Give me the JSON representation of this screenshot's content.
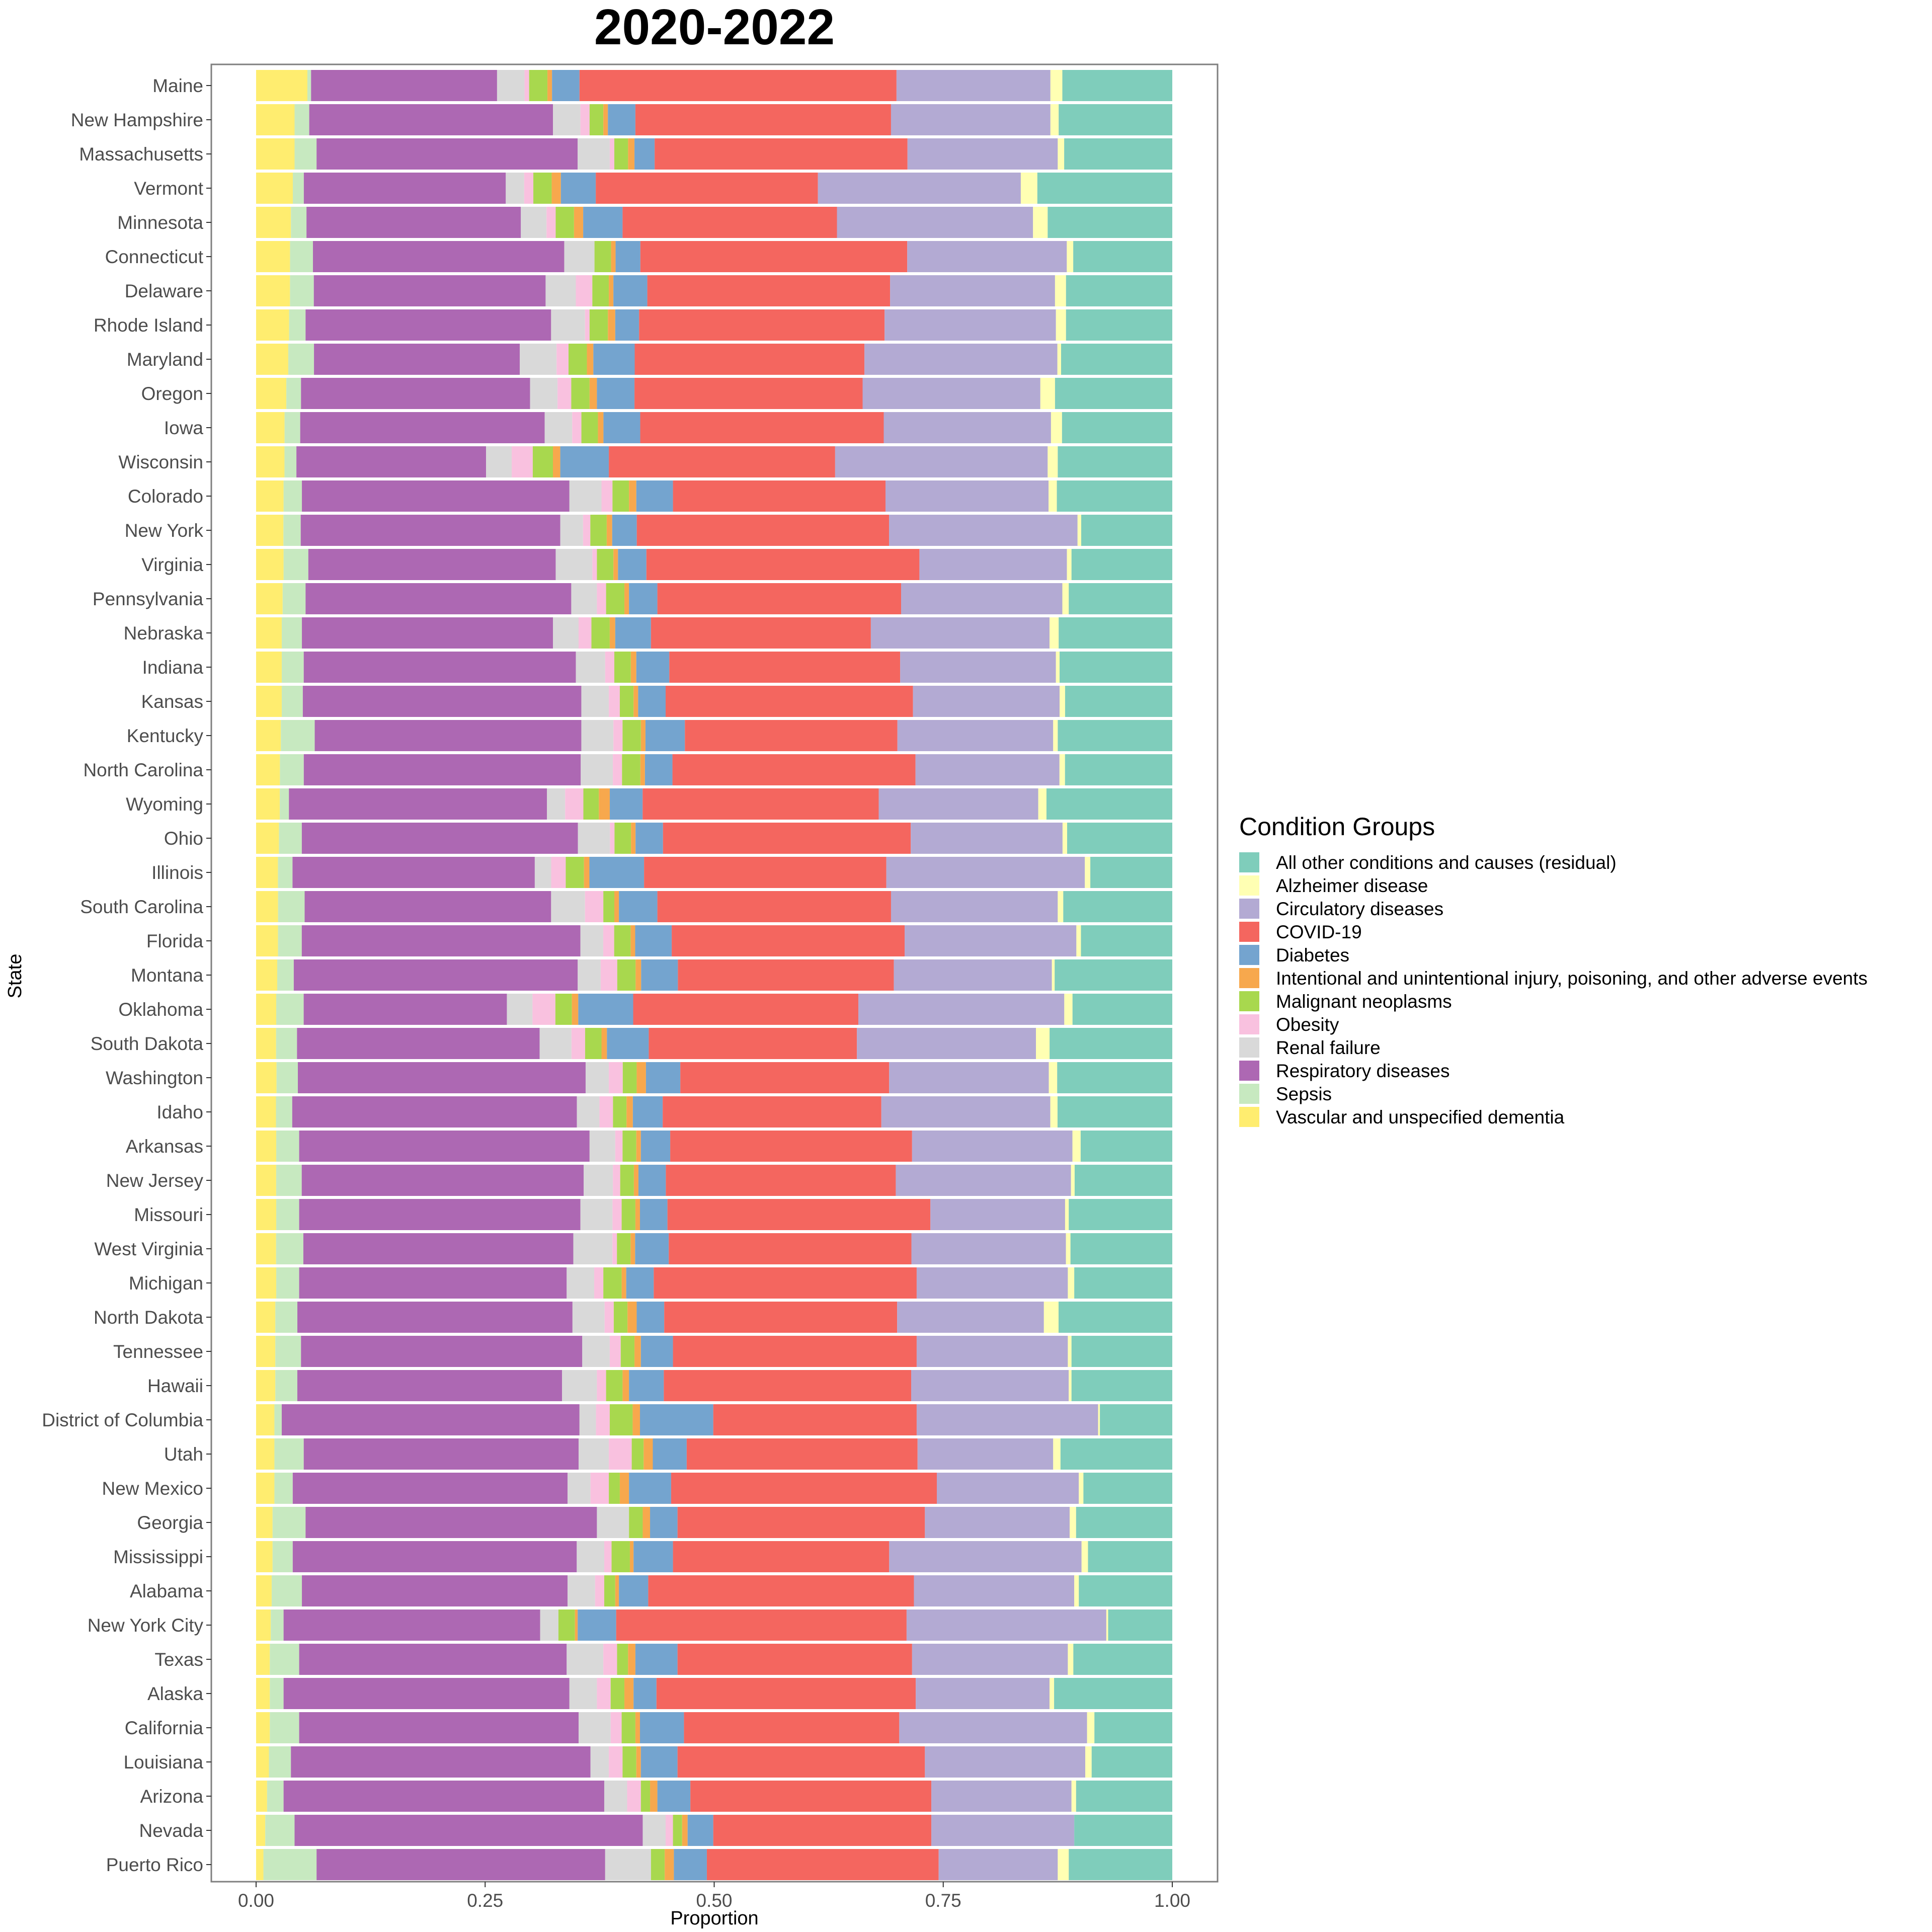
{
  "chart_data": {
    "type": "bar",
    "orientation": "horizontal",
    "stacked": true,
    "title": "2020-2022",
    "xlabel": "Proportion",
    "ylabel": "State",
    "xlim": [
      0,
      1
    ],
    "xticks": [
      "0.00",
      "0.25",
      "0.50",
      "0.75",
      "1.00"
    ],
    "xtick_values": [
      0,
      0.25,
      0.5,
      0.75,
      1
    ],
    "grid": false,
    "legend_position": "right",
    "legend_title": "Condition Groups",
    "legend": [
      {
        "name": "All other conditions and causes (residual)",
        "color": "#7fcdbb"
      },
      {
        "name": "Alzheimer disease",
        "color": "#ffffb3"
      },
      {
        "name": "Circulatory diseases",
        "color": "#b3aad3"
      },
      {
        "name": "COVID-19",
        "color": "#f4665f"
      },
      {
        "name": "Diabetes",
        "color": "#74a4cf"
      },
      {
        "name": "Intentional and unintentional injury, poisoning, and other adverse events",
        "color": "#f7a84d"
      },
      {
        "name": "Malignant neoplasms",
        "color": "#a8d84e"
      },
      {
        "name": "Obesity",
        "color": "#f9c1df"
      },
      {
        "name": "Renal failure",
        "color": "#d9d9d9"
      },
      {
        "name": "Respiratory diseases",
        "color": "#ad68b3"
      },
      {
        "name": "Sepsis",
        "color": "#c7e9c0"
      },
      {
        "name": "Vascular and unspecified dementia",
        "color": "#ffed6f"
      }
    ],
    "stack_order_left_to_right": [
      "Vascular and unspecified dementia",
      "Sepsis",
      "Respiratory diseases",
      "Renal failure",
      "Obesity",
      "Malignant neoplasms",
      "Intentional and unintentional injury, poisoning, and other adverse events",
      "Diabetes",
      "COVID-19",
      "Circulatory diseases",
      "Alzheimer disease",
      "All other conditions and causes (residual)"
    ],
    "categories": [
      "Maine",
      "New Hampshire",
      "Massachusetts",
      "Vermont",
      "Minnesota",
      "Connecticut",
      "Delaware",
      "Rhode Island",
      "Maryland",
      "Oregon",
      "Iowa",
      "Wisconsin",
      "Colorado",
      "New York",
      "Virginia",
      "Pennsylvania",
      "Nebraska",
      "Indiana",
      "Kansas",
      "Kentucky",
      "North Carolina",
      "Wyoming",
      "Ohio",
      "Illinois",
      "South Carolina",
      "Florida",
      "Montana",
      "Oklahoma",
      "South Dakota",
      "Washington",
      "Idaho",
      "Arkansas",
      "New Jersey",
      "Missouri",
      "West Virginia",
      "Michigan",
      "North Dakota",
      "Tennessee",
      "Hawaii",
      "District of Columbia",
      "Utah",
      "New Mexico",
      "Georgia",
      "Mississippi",
      "Alabama",
      "New York City",
      "Texas",
      "Alaska",
      "California",
      "Louisiana",
      "Arizona",
      "Nevada",
      "Puerto Rico"
    ],
    "rows": [
      [
        0.056,
        0.004,
        0.203,
        0.03,
        0.005,
        0.02,
        0.005,
        0.03,
        0.346,
        0.168,
        0.013,
        0.12
      ],
      [
        0.042,
        0.016,
        0.266,
        0.03,
        0.01,
        0.015,
        0.005,
        0.03,
        0.279,
        0.174,
        0.009,
        0.124
      ],
      [
        0.042,
        0.024,
        0.285,
        0.035,
        0.005,
        0.015,
        0.007,
        0.022,
        0.276,
        0.164,
        0.007,
        0.118
      ],
      [
        0.04,
        0.012,
        0.22,
        0.02,
        0.01,
        0.02,
        0.01,
        0.038,
        0.242,
        0.221,
        0.018,
        0.147
      ],
      [
        0.038,
        0.017,
        0.234,
        0.028,
        0.01,
        0.02,
        0.01,
        0.043,
        0.234,
        0.214,
        0.016,
        0.136
      ],
      [
        0.037,
        0.025,
        0.274,
        0.033,
        0.0,
        0.018,
        0.005,
        0.027,
        0.291,
        0.174,
        0.007,
        0.108
      ],
      [
        0.037,
        0.026,
        0.253,
        0.033,
        0.018,
        0.018,
        0.005,
        0.037,
        0.265,
        0.18,
        0.012,
        0.116
      ],
      [
        0.036,
        0.018,
        0.268,
        0.037,
        0.005,
        0.02,
        0.008,
        0.026,
        0.268,
        0.187,
        0.011,
        0.116
      ],
      [
        0.035,
        0.028,
        0.224,
        0.04,
        0.013,
        0.02,
        0.007,
        0.045,
        0.25,
        0.21,
        0.004,
        0.121
      ],
      [
        0.033,
        0.016,
        0.25,
        0.03,
        0.015,
        0.02,
        0.008,
        0.041,
        0.249,
        0.194,
        0.016,
        0.128
      ],
      [
        0.031,
        0.017,
        0.266,
        0.03,
        0.01,
        0.018,
        0.006,
        0.04,
        0.265,
        0.182,
        0.012,
        0.12
      ],
      [
        0.031,
        0.013,
        0.207,
        0.028,
        0.023,
        0.022,
        0.008,
        0.053,
        0.247,
        0.232,
        0.011,
        0.125
      ],
      [
        0.03,
        0.02,
        0.292,
        0.035,
        0.012,
        0.018,
        0.008,
        0.04,
        0.232,
        0.178,
        0.009,
        0.126
      ],
      [
        0.03,
        0.019,
        0.285,
        0.025,
        0.008,
        0.018,
        0.006,
        0.027,
        0.277,
        0.207,
        0.004,
        0.1
      ],
      [
        0.03,
        0.027,
        0.27,
        0.04,
        0.005,
        0.018,
        0.005,
        0.031,
        0.298,
        0.161,
        0.005,
        0.11
      ],
      [
        0.029,
        0.025,
        0.29,
        0.028,
        0.01,
        0.02,
        0.005,
        0.031,
        0.266,
        0.176,
        0.007,
        0.113
      ],
      [
        0.028,
        0.022,
        0.274,
        0.028,
        0.014,
        0.02,
        0.006,
        0.039,
        0.24,
        0.195,
        0.01,
        0.124
      ],
      [
        0.028,
        0.024,
        0.297,
        0.032,
        0.01,
        0.018,
        0.006,
        0.036,
        0.252,
        0.17,
        0.004,
        0.123
      ],
      [
        0.028,
        0.023,
        0.304,
        0.03,
        0.012,
        0.015,
        0.005,
        0.03,
        0.27,
        0.16,
        0.006,
        0.117
      ],
      [
        0.027,
        0.037,
        0.291,
        0.035,
        0.01,
        0.02,
        0.005,
        0.043,
        0.232,
        0.17,
        0.005,
        0.125
      ],
      [
        0.026,
        0.026,
        0.302,
        0.035,
        0.01,
        0.02,
        0.005,
        0.03,
        0.265,
        0.157,
        0.006,
        0.117
      ],
      [
        0.026,
        0.01,
        0.283,
        0.02,
        0.02,
        0.017,
        0.012,
        0.036,
        0.259,
        0.175,
        0.009,
        0.138
      ],
      [
        0.025,
        0.025,
        0.302,
        0.035,
        0.005,
        0.018,
        0.005,
        0.03,
        0.271,
        0.166,
        0.005,
        0.115
      ],
      [
        0.024,
        0.016,
        0.266,
        0.018,
        0.016,
        0.02,
        0.006,
        0.06,
        0.266,
        0.218,
        0.006,
        0.09
      ],
      [
        0.024,
        0.029,
        0.269,
        0.037,
        0.02,
        0.012,
        0.005,
        0.042,
        0.255,
        0.182,
        0.006,
        0.119
      ],
      [
        0.024,
        0.026,
        0.305,
        0.025,
        0.012,
        0.018,
        0.005,
        0.04,
        0.255,
        0.188,
        0.005,
        0.1
      ],
      [
        0.023,
        0.018,
        0.309,
        0.025,
        0.018,
        0.02,
        0.006,
        0.04,
        0.235,
        0.172,
        0.003,
        0.128
      ],
      [
        0.022,
        0.03,
        0.222,
        0.028,
        0.025,
        0.018,
        0.007,
        0.06,
        0.246,
        0.225,
        0.009,
        0.109
      ],
      [
        0.022,
        0.023,
        0.267,
        0.035,
        0.015,
        0.018,
        0.006,
        0.046,
        0.229,
        0.197,
        0.015,
        0.135
      ],
      [
        0.022,
        0.023,
        0.31,
        0.025,
        0.015,
        0.015,
        0.01,
        0.037,
        0.225,
        0.172,
        0.009,
        0.124
      ],
      [
        0.022,
        0.018,
        0.315,
        0.025,
        0.015,
        0.015,
        0.007,
        0.033,
        0.242,
        0.187,
        0.008,
        0.127
      ],
      [
        0.022,
        0.025,
        0.317,
        0.028,
        0.008,
        0.015,
        0.005,
        0.032,
        0.264,
        0.175,
        0.009,
        0.1
      ],
      [
        0.022,
        0.028,
        0.309,
        0.032,
        0.008,
        0.015,
        0.005,
        0.03,
        0.252,
        0.192,
        0.004,
        0.107
      ],
      [
        0.022,
        0.025,
        0.307,
        0.035,
        0.01,
        0.015,
        0.005,
        0.03,
        0.287,
        0.147,
        0.004,
        0.113
      ],
      [
        0.022,
        0.03,
        0.297,
        0.043,
        0.005,
        0.015,
        0.005,
        0.037,
        0.267,
        0.17,
        0.005,
        0.112
      ],
      [
        0.022,
        0.025,
        0.292,
        0.03,
        0.01,
        0.02,
        0.005,
        0.03,
        0.287,
        0.165,
        0.007,
        0.107
      ],
      [
        0.021,
        0.024,
        0.3,
        0.035,
        0.01,
        0.015,
        0.01,
        0.03,
        0.254,
        0.16,
        0.016,
        0.124
      ],
      [
        0.021,
        0.028,
        0.307,
        0.03,
        0.012,
        0.015,
        0.007,
        0.035,
        0.266,
        0.165,
        0.004,
        0.11
      ],
      [
        0.021,
        0.024,
        0.289,
        0.038,
        0.01,
        0.018,
        0.007,
        0.038,
        0.27,
        0.172,
        0.003,
        0.11
      ],
      [
        0.02,
        0.008,
        0.325,
        0.018,
        0.015,
        0.025,
        0.008,
        0.08,
        0.222,
        0.198,
        0.002,
        0.079
      ],
      [
        0.02,
        0.032,
        0.3,
        0.033,
        0.025,
        0.013,
        0.01,
        0.037,
        0.252,
        0.148,
        0.008,
        0.122
      ],
      [
        0.02,
        0.02,
        0.3,
        0.025,
        0.02,
        0.012,
        0.01,
        0.046,
        0.29,
        0.155,
        0.005,
        0.097
      ],
      [
        0.018,
        0.036,
        0.318,
        0.035,
        0.0,
        0.015,
        0.008,
        0.03,
        0.27,
        0.158,
        0.007,
        0.105
      ],
      [
        0.018,
        0.022,
        0.31,
        0.03,
        0.008,
        0.02,
        0.004,
        0.043,
        0.236,
        0.21,
        0.007,
        0.092
      ],
      [
        0.017,
        0.033,
        0.29,
        0.03,
        0.01,
        0.012,
        0.004,
        0.032,
        0.29,
        0.175,
        0.005,
        0.102
      ],
      [
        0.016,
        0.014,
        0.28,
        0.02,
        0.0,
        0.018,
        0.003,
        0.042,
        0.317,
        0.218,
        0.002,
        0.07
      ],
      [
        0.015,
        0.032,
        0.292,
        0.04,
        0.015,
        0.012,
        0.008,
        0.046,
        0.256,
        0.17,
        0.006,
        0.108
      ],
      [
        0.015,
        0.015,
        0.312,
        0.03,
        0.015,
        0.015,
        0.01,
        0.025,
        0.283,
        0.146,
        0.005,
        0.129
      ],
      [
        0.015,
        0.032,
        0.305,
        0.035,
        0.012,
        0.015,
        0.005,
        0.048,
        0.235,
        0.205,
        0.008,
        0.085
      ],
      [
        0.014,
        0.024,
        0.327,
        0.02,
        0.015,
        0.015,
        0.005,
        0.04,
        0.27,
        0.175,
        0.007,
        0.088
      ],
      [
        0.012,
        0.018,
        0.35,
        0.025,
        0.015,
        0.01,
        0.008,
        0.036,
        0.263,
        0.153,
        0.005,
        0.105
      ],
      [
        0.01,
        0.032,
        0.38,
        0.025,
        0.008,
        0.01,
        0.006,
        0.028,
        0.238,
        0.156,
        0.0,
        0.107
      ],
      [
        0.008,
        0.058,
        0.315,
        0.05,
        0.0,
        0.015,
        0.01,
        0.036,
        0.253,
        0.13,
        0.012,
        0.113
      ]
    ]
  }
}
